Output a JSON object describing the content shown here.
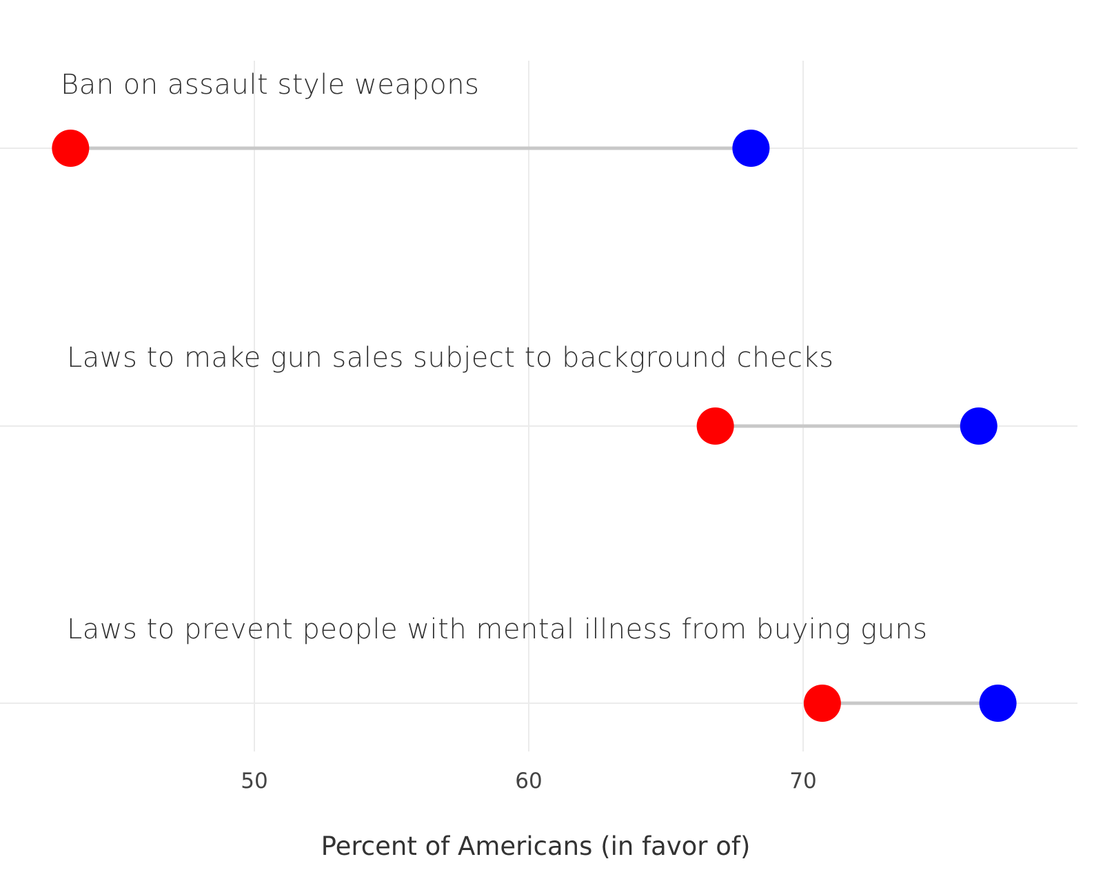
{
  "chart_data": {
    "type": "dumbbell",
    "xlabel": "Percent of Americans (in favor of)",
    "xticks": [
      50,
      60,
      70
    ],
    "xlim": [
      42.8,
      78.5
    ],
    "categories": [
      "Ban on assault style weapons",
      "Laws to make gun sales subject to background checks",
      "Laws to prevent people with mental illness from buying guns"
    ],
    "series": [
      {
        "values": [
          43.3,
          66.8,
          70.7
        ]
      },
      {
        "values": [
          68.1,
          76.4,
          77.1
        ]
      }
    ],
    "colors": {
      "low": "#ff0000",
      "high": "#0000ff",
      "segment": "#c8c8c8",
      "grid": "#ebebeb"
    },
    "grid": true,
    "legend": "none"
  }
}
